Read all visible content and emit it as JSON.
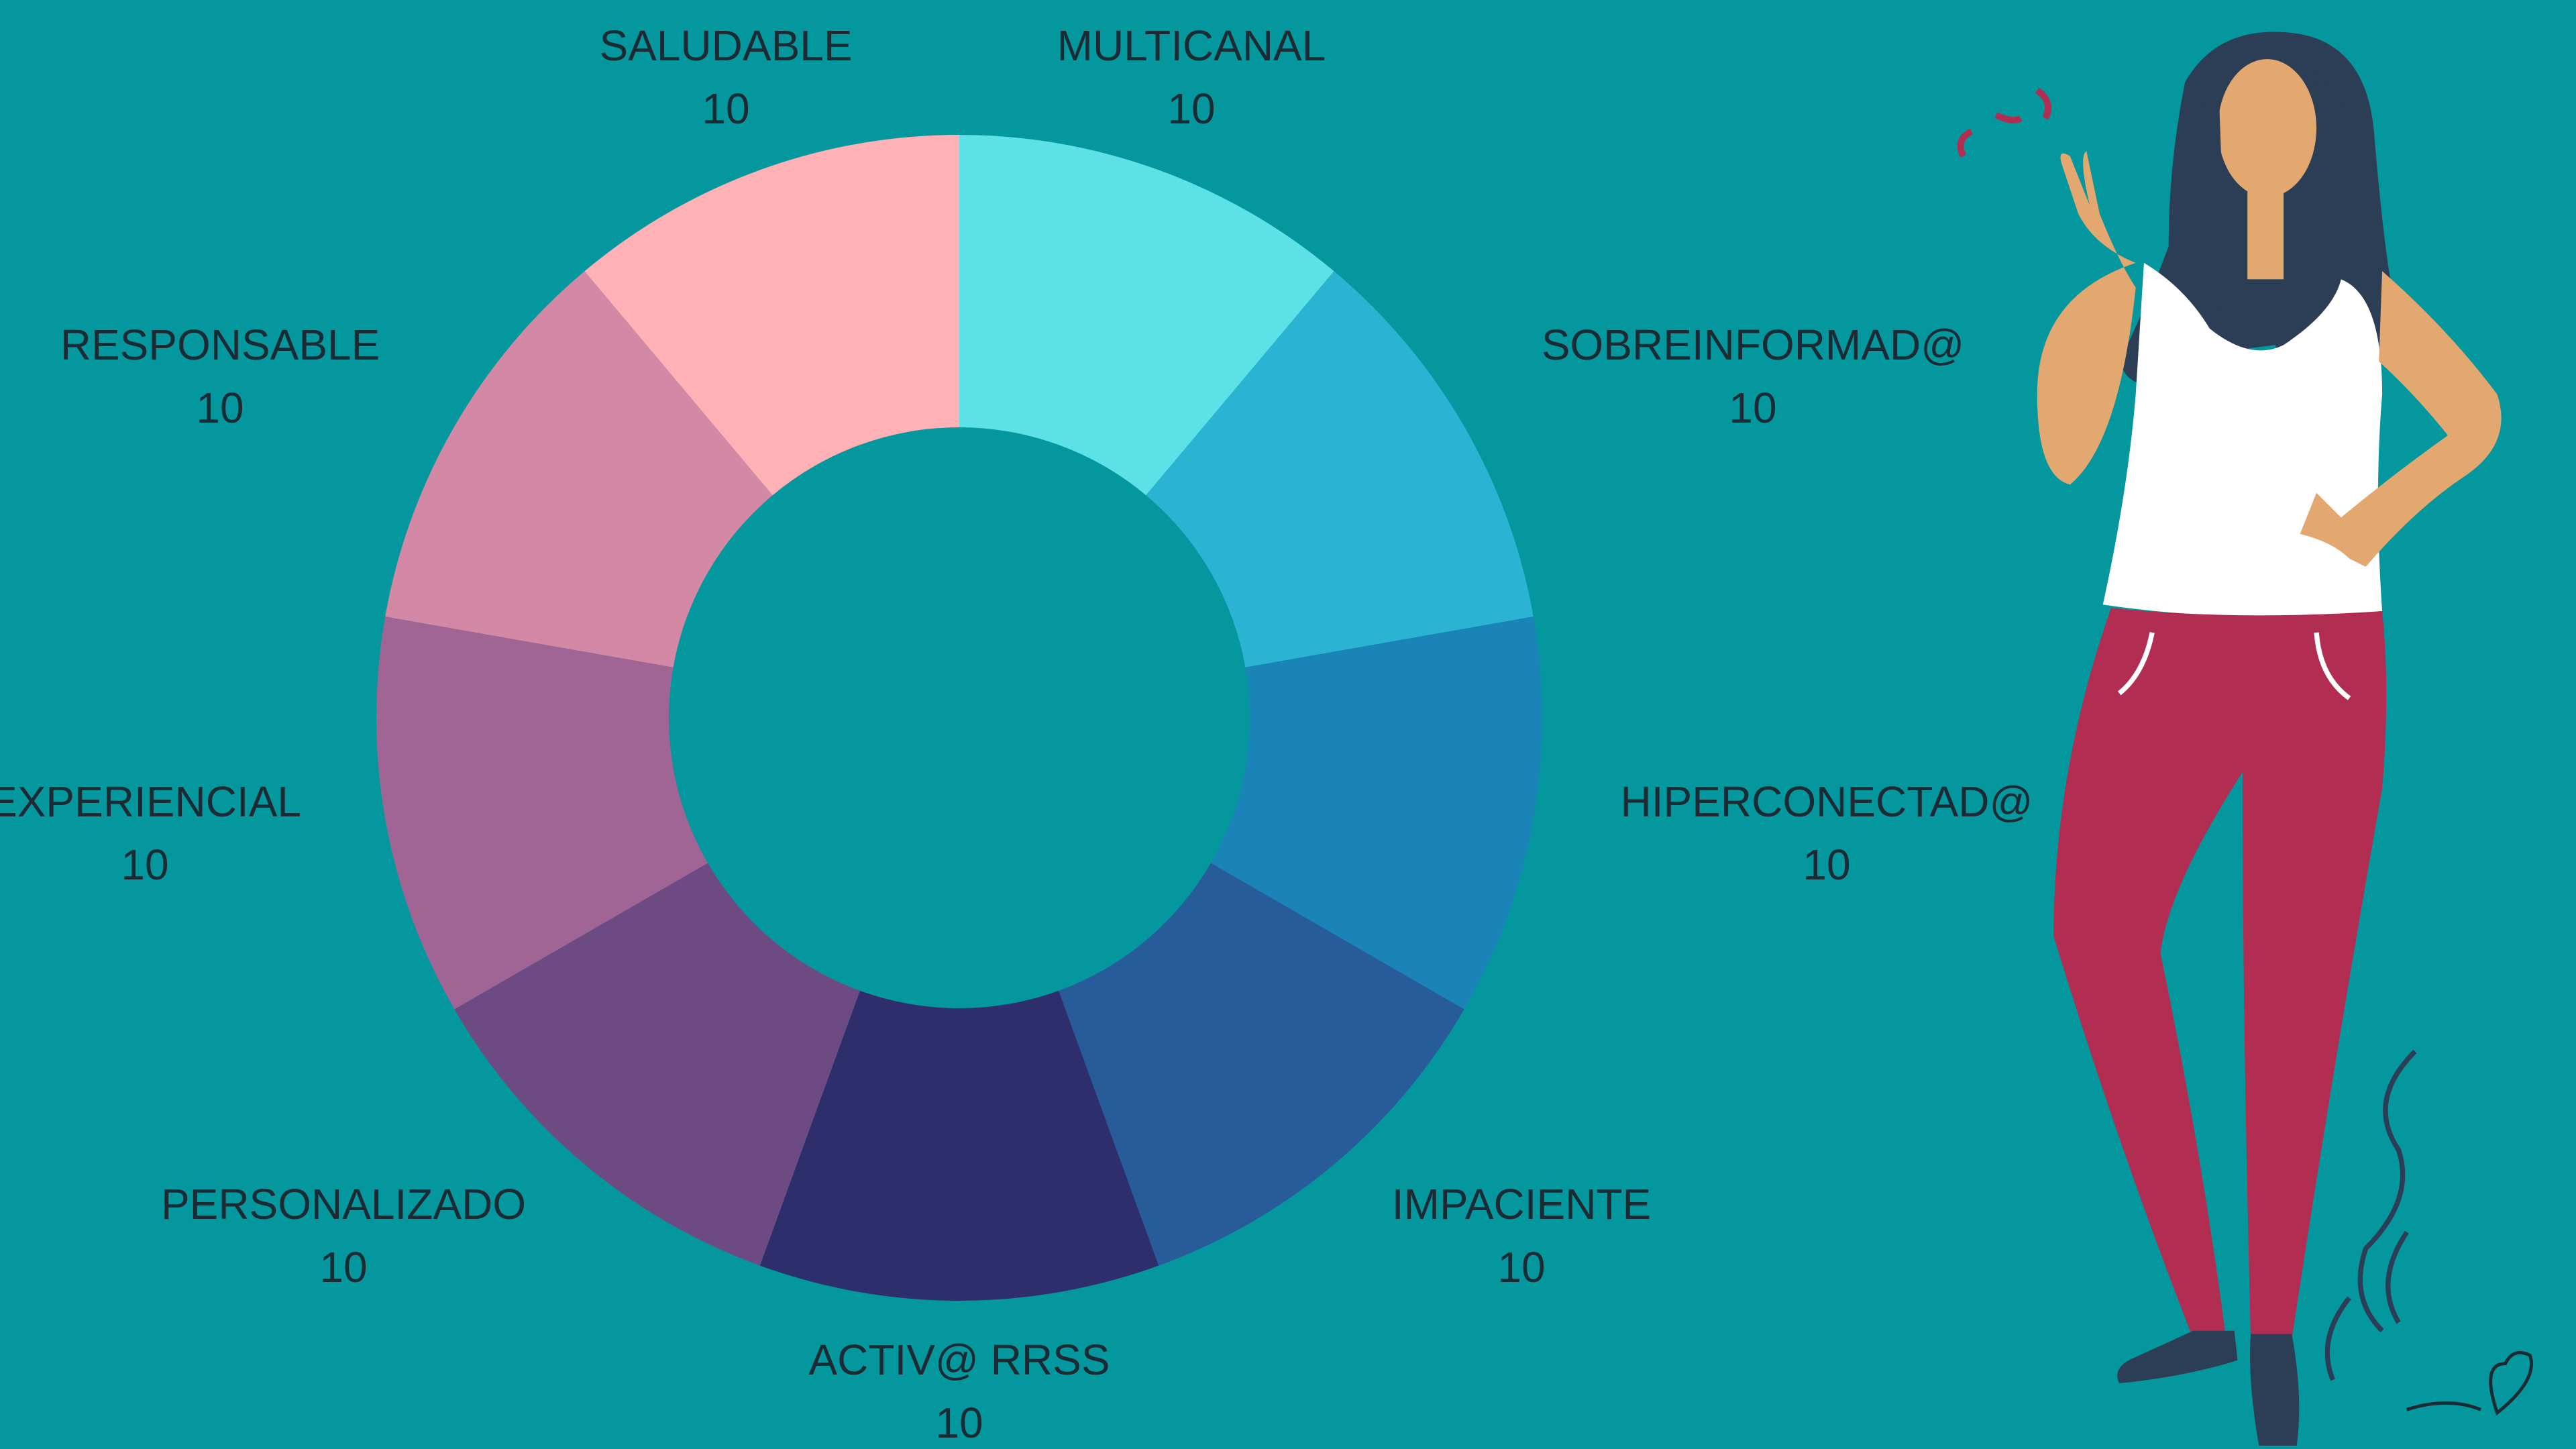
{
  "chart_data": {
    "type": "donut",
    "categories": [
      "MULTICANAL",
      "SOBREINFORMAD@",
      "HIPERCONECTAD@",
      "IMPACIENTE",
      "ACTIV@ RRSS",
      "PERSONALIZADO",
      "EXPERIENCIAL",
      "RESPONSABLE",
      "SALUDABLE"
    ],
    "values": [
      10,
      10,
      10,
      10,
      10,
      10,
      10,
      10,
      10
    ],
    "colors": [
      "#5ce1e6",
      "#2bb3d3",
      "#1a84b8",
      "#275b99",
      "#2e2e6d",
      "#6e4a82",
      "#a06594",
      "#d389a5",
      "#ffb1b6"
    ]
  }
}
